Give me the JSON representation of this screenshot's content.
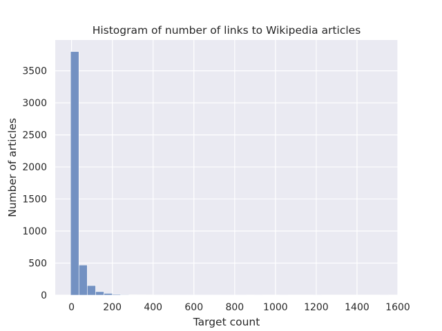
{
  "chart_data": {
    "type": "bar",
    "title": "Histogram of number of links to Wikipedia articles",
    "xlabel": "Target count",
    "ylabel": "Number of articles",
    "xlim": [
      -80,
      1600
    ],
    "ylim": [
      0,
      3980
    ],
    "xticks": [
      0,
      200,
      400,
      600,
      800,
      1000,
      1200,
      1400,
      1600
    ],
    "yticks": [
      0,
      500,
      1000,
      1500,
      2000,
      2500,
      3000,
      3500
    ],
    "bin_edges": [
      -5,
      36,
      77,
      118,
      159,
      200,
      241,
      282,
      323,
      364,
      405,
      446,
      487,
      528,
      569,
      610,
      651,
      692,
      733,
      774,
      815,
      856,
      897,
      938,
      979,
      1020,
      1061,
      1102,
      1143,
      1184,
      1225,
      1266,
      1307,
      1348,
      1389,
      1430,
      1471,
      1512,
      1553
    ],
    "values": [
      3800,
      470,
      150,
      55,
      28,
      12,
      8,
      5,
      4,
      3,
      2,
      2,
      2,
      1,
      1,
      1,
      1,
      1,
      1,
      1,
      1,
      0,
      1,
      0,
      0,
      1,
      0,
      0,
      0,
      1,
      0,
      0,
      0,
      0,
      0,
      0,
      0,
      1
    ],
    "bar_color": "#7391c2",
    "background": "#eaeaf2",
    "grid": true
  }
}
